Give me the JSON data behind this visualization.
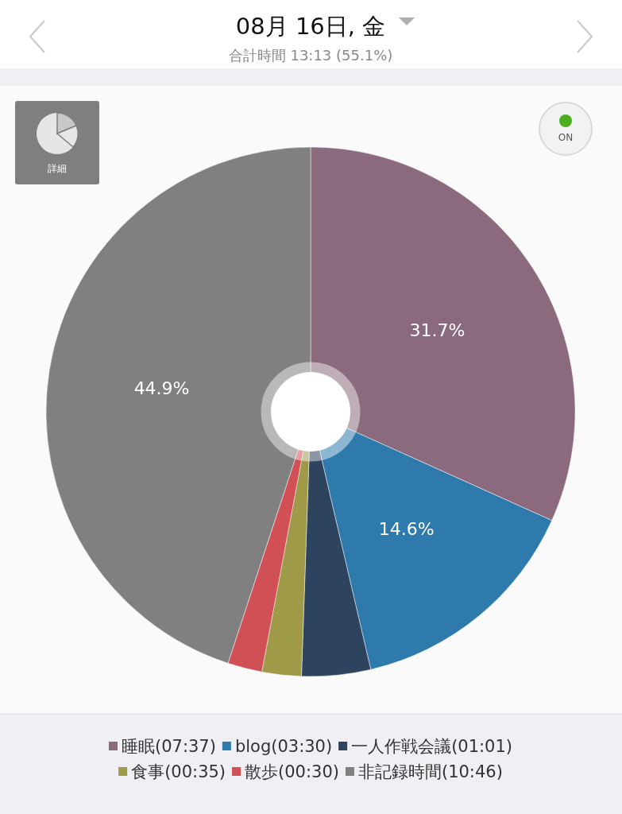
{
  "chart_data": {
    "type": "pie",
    "title": "08月 16日, 金",
    "subtitle": "合計時間 13:13 (55.1%)",
    "categories": [
      "睡眠(07:37)",
      "blog(03:30)",
      "一人作戦会議(01:01)",
      "食事(00:35)",
      "散歩(00:30)",
      "非記録時間(10:46)"
    ],
    "values": [
      31.7,
      14.6,
      4.2,
      2.4,
      2.1,
      44.9
    ],
    "colors": [
      "#8a6a7c",
      "#2f7aad",
      "#2e435d",
      "#9e9a48",
      "#d05055",
      "#808080"
    ],
    "value_labels": [
      "31.7%",
      "14.6%",
      null,
      null,
      null,
      "44.9%"
    ],
    "legend": "bottom",
    "annotations": [
      "詳細",
      "ON"
    ]
  }
}
